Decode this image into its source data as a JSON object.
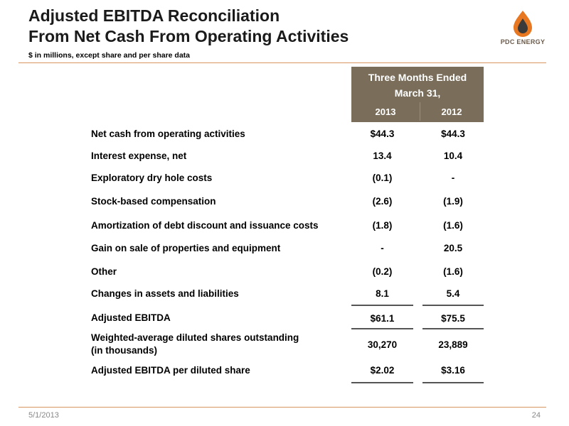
{
  "title": {
    "line1": "Adjusted EBITDA Reconciliation",
    "line2": "From Net Cash From Operating Activities"
  },
  "logo": {
    "text": "PDC ENERGY",
    "icon": "pdc-flame-drop-logo",
    "accent_color": "#e87722",
    "dark_color": "#3a3a3a"
  },
  "subtitle": "$ in millions, except share and per share data",
  "table": {
    "header": {
      "line1": "Three Months Ended",
      "line2": "March 31,",
      "years": [
        "2013",
        "2012"
      ],
      "bg_color": "#7a6e5a"
    },
    "rows": [
      {
        "label": "Net cash from operating activities",
        "v2013": "$44.3",
        "v2012": "$44.3"
      },
      {
        "label": "Interest expense, net",
        "v2013": "13.4",
        "v2012": "10.4"
      },
      {
        "label": "Exploratory dry hole costs",
        "v2013": "(0.1)",
        "v2012": "-"
      },
      {
        "label": "Stock-based compensation",
        "v2013": "(2.6)",
        "v2012": "(1.9)"
      },
      {
        "label": "Amortization of debt discount and issuance costs",
        "v2013": "(1.8)",
        "v2012": "(1.6)"
      },
      {
        "label": "Gain on sale of properties and equipment",
        "v2013": "-",
        "v2012": "20.5"
      },
      {
        "label": "Other",
        "v2013": "(0.2)",
        "v2012": "(1.6)"
      },
      {
        "label": "Changes in assets and liabilities",
        "v2013": "8.1",
        "v2012": "5.4"
      },
      {
        "label": "Adjusted EBITDA",
        "v2013": "$61.1",
        "v2012": "$75.5"
      },
      {
        "label_line1": "Weighted-average diluted shares outstanding",
        "label_line2": "(in thousands)",
        "v2013": "30,270",
        "v2012": "23,889"
      },
      {
        "label": "Adjusted EBITDA per diluted share",
        "v2013": "$2.02",
        "v2012": "$3.16"
      }
    ]
  },
  "footer": {
    "date": "5/1/2013",
    "page": "24"
  }
}
